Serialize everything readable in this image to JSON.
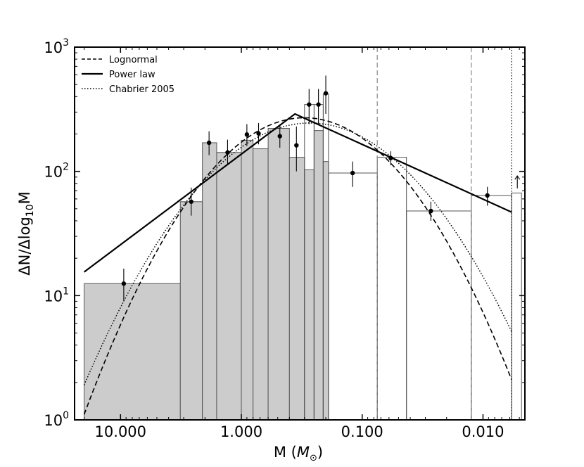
{
  "chart_data": {
    "type": "bar",
    "xlabel_main": "M (",
    "xlabel_sym": "M",
    "xlabel_sub": "⊙",
    "xlabel_close": ")",
    "ylabel_pre": "ΔN/Δlog",
    "ylabel_sub": "10",
    "ylabel_post": "M",
    "x_scale": "log",
    "x_reversed": true,
    "xlim": [
      24.0,
      0.0045
    ],
    "y_scale": "log",
    "ylim": [
      1,
      1000
    ],
    "x_ticks": [
      {
        "value": 10.0,
        "label": "10.000"
      },
      {
        "value": 1.0,
        "label": "1.000"
      },
      {
        "value": 0.1,
        "label": "0.100"
      },
      {
        "value": 0.01,
        "label": "0.010"
      }
    ],
    "y_ticks": [
      {
        "value": 1,
        "base": "10",
        "exp": "0"
      },
      {
        "value": 10,
        "base": "10",
        "exp": "1"
      },
      {
        "value": 100,
        "base": "10",
        "exp": "2"
      },
      {
        "value": 1000,
        "base": "10",
        "exp": "3"
      }
    ],
    "legend": {
      "position": "top-left",
      "entries": [
        {
          "label": "Lognormal",
          "style": "dashed"
        },
        {
          "label": "Power law",
          "style": "solid"
        },
        {
          "label": "Chabrier 2005",
          "style": "dotted"
        }
      ]
    },
    "bins_filled": [
      {
        "x0": 20.0,
        "x1": 3.2,
        "y": 12.5
      },
      {
        "x0": 3.2,
        "x1": 2.1,
        "y": 57
      },
      {
        "x0": 2.1,
        "x1": 1.6,
        "y": 170
      },
      {
        "x0": 1.6,
        "x1": 1.0,
        "y": 142
      },
      {
        "x0": 1.0,
        "x1": 0.8,
        "y": 178
      },
      {
        "x0": 0.8,
        "x1": 0.6,
        "y": 152
      },
      {
        "x0": 0.6,
        "x1": 0.4,
        "y": 222
      },
      {
        "x0": 0.4,
        "x1": 0.3,
        "y": 130
      },
      {
        "x0": 0.3,
        "x1": 0.25,
        "y": 103
      },
      {
        "x0": 0.25,
        "x1": 0.21,
        "y": 213
      },
      {
        "x0": 0.21,
        "x1": 0.19,
        "y": 120
      }
    ],
    "bins_open": [
      {
        "x0": 0.3,
        "x1": 0.25,
        "y": 345
      },
      {
        "x0": 0.25,
        "x1": 0.21,
        "y": 345
      },
      {
        "x0": 0.21,
        "x1": 0.19,
        "y": 420
      },
      {
        "x0": 0.19,
        "x1": 0.075,
        "y": 97
      },
      {
        "x0": 0.075,
        "x1": 0.043,
        "y": 130
      },
      {
        "x0": 0.043,
        "x1": 0.0125,
        "y": 48
      },
      {
        "x0": 0.0125,
        "x1": 0.0058,
        "y": 64
      },
      {
        "x0": 0.0058,
        "x1": 0.0048,
        "y": 67
      }
    ],
    "points": [
      {
        "x": 9.4,
        "y": 12.5,
        "lo": 9.0,
        "hi": 16.5
      },
      {
        "x": 2.6,
        "y": 57,
        "lo": 44,
        "hi": 74
      },
      {
        "x": 1.85,
        "y": 170,
        "lo": 135,
        "hi": 210
      },
      {
        "x": 1.3,
        "y": 142,
        "lo": 112,
        "hi": 180
      },
      {
        "x": 0.9,
        "y": 198,
        "lo": 160,
        "hi": 240
      },
      {
        "x": 0.72,
        "y": 202,
        "lo": 165,
        "hi": 245
      },
      {
        "x": 0.48,
        "y": 192,
        "lo": 155,
        "hi": 232
      },
      {
        "x": 0.35,
        "y": 162,
        "lo": 100,
        "hi": 230
      },
      {
        "x": 0.275,
        "y": 345,
        "lo": 240,
        "hi": 460
      },
      {
        "x": 0.23,
        "y": 345,
        "lo": 240,
        "hi": 460
      },
      {
        "x": 0.2,
        "y": 425,
        "lo": 290,
        "hi": 590
      },
      {
        "x": 0.12,
        "y": 97,
        "lo": 75,
        "hi": 120
      },
      {
        "x": 0.058,
        "y": 128,
        "lo": 112,
        "hi": 145
      },
      {
        "x": 0.027,
        "y": 48,
        "lo": 40,
        "hi": 57
      },
      {
        "x": 0.0092,
        "y": 64,
        "lo": 53,
        "hi": 75
      }
    ],
    "upper_limit_arrow": {
      "x": 0.0052,
      "y_from": 73,
      "y_to": 92
    },
    "power_law": [
      {
        "x": 20.0,
        "y": 15.5
      },
      {
        "x": 0.36,
        "y": 290
      },
      {
        "x": 0.0058,
        "y": 47
      }
    ],
    "lognormal": {
      "peak_mass": 0.3,
      "peak_value": 270,
      "sigma": 0.55,
      "x_from": 20.0,
      "x_to": 0.0058
    },
    "chabrier": {
      "peak_mass": 0.27,
      "peak_value": 245,
      "sigma": 0.6,
      "x_from": 20.0,
      "x_to": 0.0058
    },
    "vlines": [
      {
        "x": 0.075,
        "style": "dashed",
        "color": "#888888"
      },
      {
        "x": 0.0125,
        "style": "dashed",
        "color": "#888888"
      },
      {
        "x": 0.0058,
        "style": "dotted",
        "color": "#000000"
      }
    ],
    "colors": {
      "bar_fill": "#cccccc",
      "bar_stroke": "#555555",
      "line": "#000000"
    }
  }
}
